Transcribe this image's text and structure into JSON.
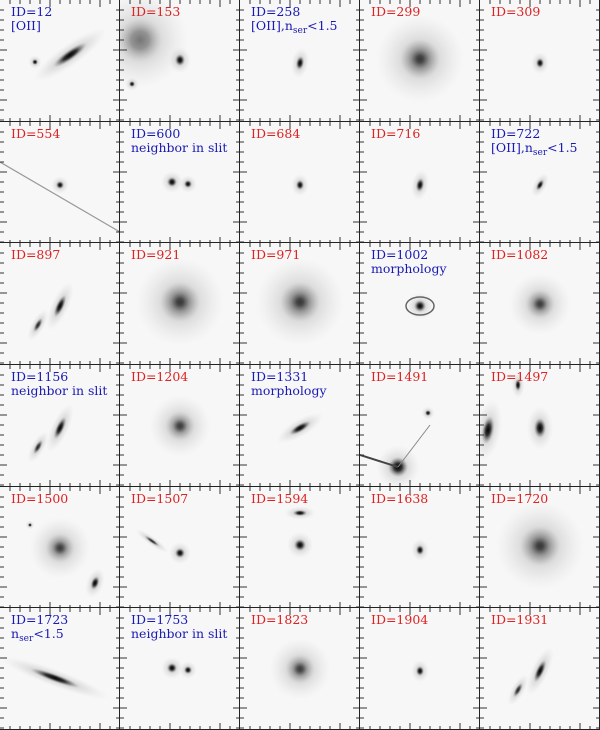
{
  "panels": [
    {
      "id": "ID=12",
      "color": "blue",
      "notes": [
        "[OII]"
      ],
      "shape": "edgeon-big"
    },
    {
      "id": "ID=153",
      "color": "red",
      "notes": [],
      "shape": "haze-left"
    },
    {
      "id": "ID=258",
      "color": "blue",
      "notes": [
        "[OII],n",
        "ser",
        "<1.5"
      ],
      "shape": "small-elong"
    },
    {
      "id": "ID=299",
      "color": "red",
      "notes": [],
      "shape": "big-round"
    },
    {
      "id": "ID=309",
      "color": "red",
      "notes": [],
      "shape": "small"
    },
    {
      "id": "ID=554",
      "color": "red",
      "notes": [],
      "shape": "small-streak"
    },
    {
      "id": "ID=600",
      "color": "blue",
      "notes": [
        "neighbor in slit"
      ],
      "shape": "pair"
    },
    {
      "id": "ID=684",
      "color": "red",
      "notes": [],
      "shape": "small"
    },
    {
      "id": "ID=716",
      "color": "red",
      "notes": [],
      "shape": "small-elong"
    },
    {
      "id": "ID=722",
      "color": "blue",
      "notes": [
        "[OII],n",
        "ser",
        "<1.5"
      ],
      "shape": "small-tilt"
    },
    {
      "id": "ID=897",
      "color": "red",
      "notes": [],
      "shape": "tilt-pair"
    },
    {
      "id": "ID=921",
      "color": "red",
      "notes": [],
      "shape": "big-round"
    },
    {
      "id": "ID=971",
      "color": "red",
      "notes": [],
      "shape": "big-round"
    },
    {
      "id": "ID=1002",
      "color": "blue",
      "notes": [
        "morphology"
      ],
      "shape": "spiral"
    },
    {
      "id": "ID=1082",
      "color": "red",
      "notes": [],
      "shape": "medium"
    },
    {
      "id": "ID=1156",
      "color": "blue",
      "notes": [
        "neighbor in slit"
      ],
      "shape": "tilt-pair"
    },
    {
      "id": "ID=1204",
      "color": "red",
      "notes": [],
      "shape": "medium"
    },
    {
      "id": "ID=1331",
      "color": "blue",
      "notes": [
        "morphology"
      ],
      "shape": "tilt"
    },
    {
      "id": "ID=1491",
      "color": "red",
      "notes": [],
      "shape": "star-spikes"
    },
    {
      "id": "ID=1497",
      "color": "red",
      "notes": [],
      "shape": "edge-neighbors"
    },
    {
      "id": "ID=1500",
      "color": "red",
      "notes": [],
      "shape": "medium-neighbors"
    },
    {
      "id": "ID=1507",
      "color": "red",
      "notes": [],
      "shape": "pair-streak"
    },
    {
      "id": "ID=1594",
      "color": "red",
      "notes": [],
      "shape": "stack"
    },
    {
      "id": "ID=1638",
      "color": "red",
      "notes": [],
      "shape": "small"
    },
    {
      "id": "ID=1720",
      "color": "red",
      "notes": [],
      "shape": "big-round"
    },
    {
      "id": "ID=1723",
      "color": "blue",
      "notes": [
        "n",
        "ser",
        "<1.5"
      ],
      "shape": "edgeon-long"
    },
    {
      "id": "ID=1753",
      "color": "blue",
      "notes": [
        "neighbor in slit"
      ],
      "shape": "pair"
    },
    {
      "id": "ID=1823",
      "color": "red",
      "notes": [],
      "shape": "medium"
    },
    {
      "id": "ID=1904",
      "color": "red",
      "notes": [],
      "shape": "small"
    },
    {
      "id": "ID=1931",
      "color": "red",
      "notes": [],
      "shape": "tilt-pair"
    }
  ]
}
